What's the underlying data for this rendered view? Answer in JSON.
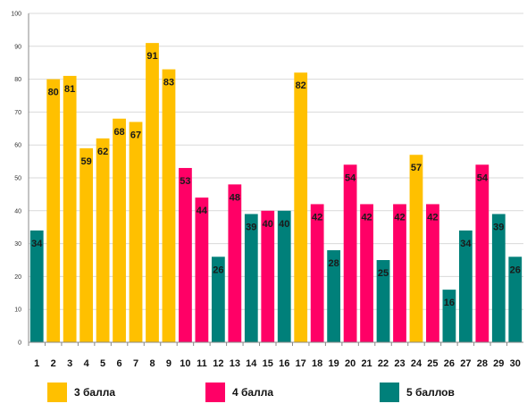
{
  "chart_data": {
    "type": "bar",
    "categories": [
      "1",
      "2",
      "3",
      "4",
      "5",
      "6",
      "7",
      "8",
      "9",
      "10",
      "11",
      "12",
      "13",
      "14",
      "15",
      "16",
      "17",
      "18",
      "19",
      "20",
      "21",
      "22",
      "23",
      "24",
      "25",
      "26",
      "27",
      "28",
      "29",
      "30"
    ],
    "values": [
      34,
      80,
      81,
      59,
      62,
      68,
      67,
      91,
      83,
      53,
      44,
      26,
      48,
      39,
      40,
      40,
      82,
      42,
      28,
      54,
      42,
      25,
      42,
      57,
      42,
      16,
      34,
      54,
      39,
      26
    ],
    "groups": [
      2,
      0,
      0,
      0,
      0,
      0,
      0,
      0,
      0,
      1,
      1,
      2,
      1,
      2,
      1,
      2,
      0,
      1,
      2,
      1,
      1,
      2,
      1,
      0,
      1,
      2,
      2,
      1,
      2,
      2
    ],
    "series": [
      {
        "name": "3 балла",
        "color": "#FFC000"
      },
      {
        "name": "4 балла",
        "color": "#FF0066"
      },
      {
        "name": "5 баллов",
        "color": "#00807A"
      }
    ],
    "yticks": [
      "0",
      "10",
      "20",
      "30",
      "40",
      "50",
      "60",
      "70",
      "80",
      "90",
      "100"
    ],
    "ylim": [
      0,
      100
    ],
    "grid": true,
    "legend_position": "bottom"
  }
}
